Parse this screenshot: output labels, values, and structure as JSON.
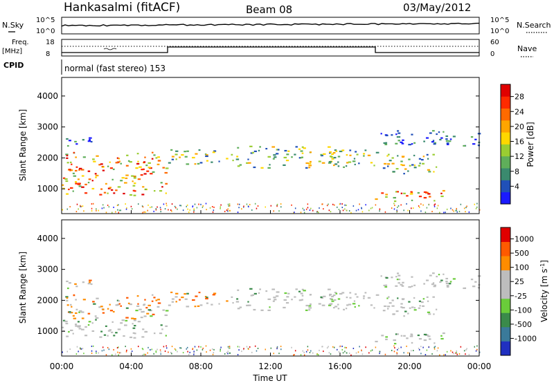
{
  "header": {
    "station": "Hankasalmi (fitACF)",
    "beam": "Beam 08",
    "date": "03/May/2012"
  },
  "strip_labels": {
    "nsky": "N.Sky",
    "nsky_ticks": [
      "10^5",
      "10^0"
    ],
    "nsearch": "N.Search",
    "nsearch_ticks": [
      "10^5",
      "10^0"
    ],
    "freq": "Freq.",
    "freq_unit": "[MHz]",
    "freq_ticks": [
      "18",
      "8"
    ],
    "nave": "Nave",
    "nave_ticks": [
      "60",
      "0"
    ],
    "cpid": "CPID",
    "cpid_text": "normal (fast stereo) 153"
  },
  "chart_data": [
    {
      "type": "heatmap",
      "name": "power",
      "ylabel": "Slant Range [km]",
      "xlabel": "",
      "yticks": [
        "1000",
        "2000",
        "3000",
        "4000"
      ],
      "ylim": [
        200,
        4600
      ],
      "xlim_hours": [
        0,
        24
      ],
      "colorbar": {
        "label": "Power [dB]",
        "ticks": [
          "4",
          "8",
          "12",
          "16",
          "20",
          "24",
          "28"
        ],
        "colors": [
          "#1a1aff",
          "#2050b8",
          "#3a8a6e",
          "#5fae5a",
          "#9acd32",
          "#ffd700",
          "#ffa500",
          "#ff6a00",
          "#ff2a00",
          "#e00000"
        ]
      },
      "echo_regions": [
        {
          "from_h": 0.0,
          "to_h": 6.0,
          "range_km": [
            800,
            2200
          ],
          "level": "strong"
        },
        {
          "from_h": 0.0,
          "to_h": 2.0,
          "range_km": [
            2400,
            2700
          ],
          "level": "weak"
        },
        {
          "from_h": 6.0,
          "to_h": 9.5,
          "range_km": [
            1800,
            2300
          ],
          "level": "medium"
        },
        {
          "from_h": 9.5,
          "to_h": 18.0,
          "range_km": [
            1700,
            2400
          ],
          "level": "medium"
        },
        {
          "from_h": 18.0,
          "to_h": 21.5,
          "range_km": [
            1500,
            2200
          ],
          "level": "medium"
        },
        {
          "from_h": 18.0,
          "to_h": 22.0,
          "range_km": [
            600,
            1000
          ],
          "level": "strong"
        },
        {
          "from_h": 18.0,
          "to_h": 24.0,
          "range_km": [
            2400,
            2900
          ],
          "level": "weak"
        }
      ]
    },
    {
      "type": "heatmap",
      "name": "velocity",
      "ylabel": "Slant Range [km]",
      "xlabel": "Time UT",
      "yticks": [
        "1000",
        "2000",
        "3000",
        "4000"
      ],
      "xticks": [
        "00:00",
        "04:00",
        "08:00",
        "12:00",
        "16:00",
        "20:00",
        "00:00"
      ],
      "ylim": [
        200,
        4600
      ],
      "xlim_hours": [
        0,
        24
      ],
      "colorbar": {
        "label": "Velocity [m s",
        "label_sup": "-1",
        "label_end": "]",
        "ticks": [
          "1000",
          "500",
          "100",
          "25",
          "-25",
          "-100",
          "-500",
          "-1000"
        ],
        "colors": [
          "#2030c0",
          "#3a7a9a",
          "#3a8a4a",
          "#6acc3a",
          "#bdbdbd",
          "#bdbdbd",
          "#ff8c00",
          "#ff5a00",
          "#e00000"
        ]
      }
    }
  ]
}
